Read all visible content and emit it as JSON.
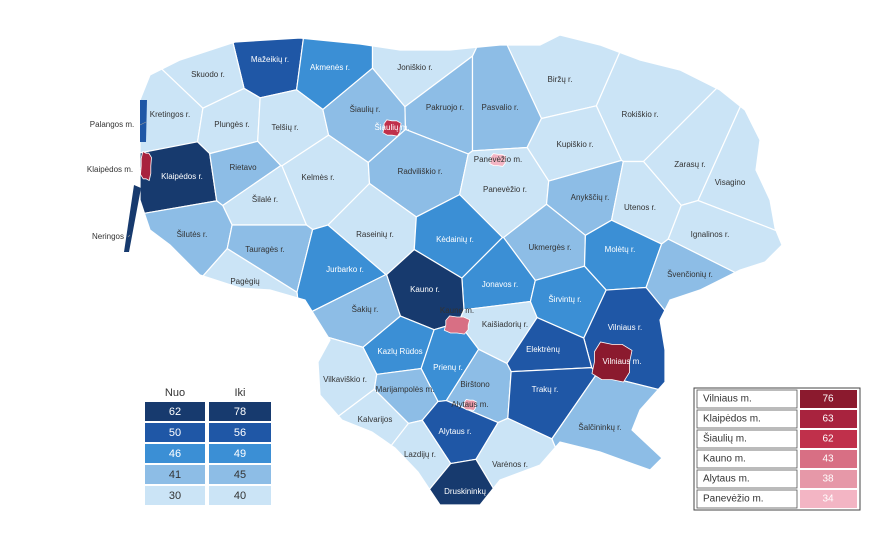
{
  "map": {
    "regions": [
      {
        "label": "Mažeikių r.",
        "color": "#1f57a6"
      },
      {
        "label": "Akmenės r.",
        "color": "#3b8fd5"
      },
      {
        "label": "Joniškio r.",
        "color": "#cbe4f6"
      },
      {
        "label": "Skuodo r.",
        "color": "#cbe4f6"
      },
      {
        "label": "Biržų r.",
        "color": "#cbe4f6"
      },
      {
        "label": "Kretingos r.",
        "color": "#cbe4f6"
      },
      {
        "label": "Plungės r.",
        "color": "#cbe4f6"
      },
      {
        "label": "Telšių r.",
        "color": "#cbe4f6"
      },
      {
        "label": "Šiaulių r.",
        "color": "#8dbde6"
      },
      {
        "label": "Pakruojo r.",
        "color": "#8dbde6"
      },
      {
        "label": "Pasvalio r.",
        "color": "#8dbde6"
      },
      {
        "label": "Rokiškio r.",
        "color": "#cbe4f6"
      },
      {
        "label": "Kupiškio r.",
        "color": "#cbe4f6"
      },
      {
        "label": "Klaipėdos r.",
        "color": "#173a6e"
      },
      {
        "label": "Rietavo",
        "color": "#8dbde6"
      },
      {
        "label": "Kelmės r.",
        "color": "#cbe4f6"
      },
      {
        "label": "Radviliškio r.",
        "color": "#8dbde6"
      },
      {
        "label": "Panevėžio r.",
        "color": "#cbe4f6"
      },
      {
        "label": "Zarasų r.",
        "color": "#cbe4f6"
      },
      {
        "label": "Anykščių r.",
        "color": "#8dbde6"
      },
      {
        "label": "Utenos r.",
        "color": "#cbe4f6"
      },
      {
        "label": "Visagino",
        "color": "#cbe4f6"
      },
      {
        "label": "Šilalė r.",
        "color": "#cbe4f6"
      },
      {
        "label": "Šilutės r.",
        "color": "#8dbde6"
      },
      {
        "label": "Raseinių r.",
        "color": "#cbe4f6"
      },
      {
        "label": "Kėdainių r.",
        "color": "#3b8fd5"
      },
      {
        "label": "Ukmergės r.",
        "color": "#8dbde6"
      },
      {
        "label": "Molėtų r.",
        "color": "#3b8fd5"
      },
      {
        "label": "Ignalinos r.",
        "color": "#cbe4f6"
      },
      {
        "label": "Tauragės r.",
        "color": "#8dbde6"
      },
      {
        "label": "Švenčionių r.",
        "color": "#8dbde6"
      },
      {
        "label": "Jurbarko r.",
        "color": "#3b8fd5"
      },
      {
        "label": "Jonavos r.",
        "color": "#3b8fd5"
      },
      {
        "label": "Pagėgių",
        "color": "#cbe4f6"
      },
      {
        "label": "Kauno r.",
        "color": "#173a6e"
      },
      {
        "label": "Kaišiadorių r.",
        "color": "#cbe4f6"
      },
      {
        "label": "Širvintų r.",
        "color": "#3b8fd5"
      },
      {
        "label": "Šakių r.",
        "color": "#8dbde6"
      },
      {
        "label": "Vilniaus r.",
        "color": "#1f57a6"
      },
      {
        "label": "Elektrėnų",
        "color": "#1f57a6"
      },
      {
        "label": "Kazlų Rūdos",
        "color": "#3b8fd5"
      },
      {
        "label": "Prienų r.",
        "color": "#3b8fd5"
      },
      {
        "label": "Vilkaviškio r.",
        "color": "#cbe4f6"
      },
      {
        "label": "Birštono",
        "color": "#8dbde6"
      },
      {
        "label": "Trakų r.",
        "color": "#1f57a6"
      },
      {
        "label": "Marijampolės m.",
        "color": "#8dbde6"
      },
      {
        "label": "Kalvarijos",
        "color": "#cbe4f6"
      },
      {
        "label": "Alytaus r.",
        "color": "#1f57a6"
      },
      {
        "label": "Šalčininkų r.",
        "color": "#8dbde6"
      },
      {
        "label": "Lazdijų r.",
        "color": "#cbe4f6"
      },
      {
        "label": "Varėnos r.",
        "color": "#cbe4f6"
      },
      {
        "label": "Druskininkų",
        "color": "#173a6e"
      }
    ],
    "cities": [
      {
        "label": "Šiaulių m.",
        "color": "#c0304b"
      },
      {
        "label": "Panevėžio m.",
        "color": "#f3b5c4"
      },
      {
        "label": "Kauno m.",
        "color": "#d86f84"
      },
      {
        "label": "Alytaus m.",
        "color": "#e698a8"
      },
      {
        "label": "Vilniaus m.",
        "color": "#8b1a2e"
      },
      {
        "label": "Klaipėdos m.",
        "color": "#a8233e"
      }
    ],
    "outside_labels": [
      "Palangos m.",
      "Klaipėdos m.",
      "Neringos"
    ]
  },
  "legend": {
    "headers": [
      "Nuo",
      "Iki"
    ],
    "rows": [
      {
        "from": 62,
        "to": 78,
        "color": "#173a6e"
      },
      {
        "from": 50,
        "to": 56,
        "color": "#1f57a6"
      },
      {
        "from": 46,
        "to": 49,
        "color": "#3b8fd5"
      },
      {
        "from": 41,
        "to": 45,
        "color": "#8dbde6"
      },
      {
        "from": 30,
        "to": 40,
        "color": "#cbe4f6"
      }
    ]
  },
  "city_table": {
    "rows": [
      {
        "name": "Vilniaus m.",
        "value": 76,
        "color": "#8b1a2e"
      },
      {
        "name": "Klaipėdos m.",
        "value": 63,
        "color": "#a8233e"
      },
      {
        "name": "Šiaulių m.",
        "value": 62,
        "color": "#c0304b"
      },
      {
        "name": "Kauno m.",
        "value": 43,
        "color": "#d86f84"
      },
      {
        "name": "Alytaus m.",
        "value": 38,
        "color": "#e698a8"
      },
      {
        "name": "Panevėžio m.",
        "value": 34,
        "color": "#f3b5c4"
      }
    ]
  }
}
